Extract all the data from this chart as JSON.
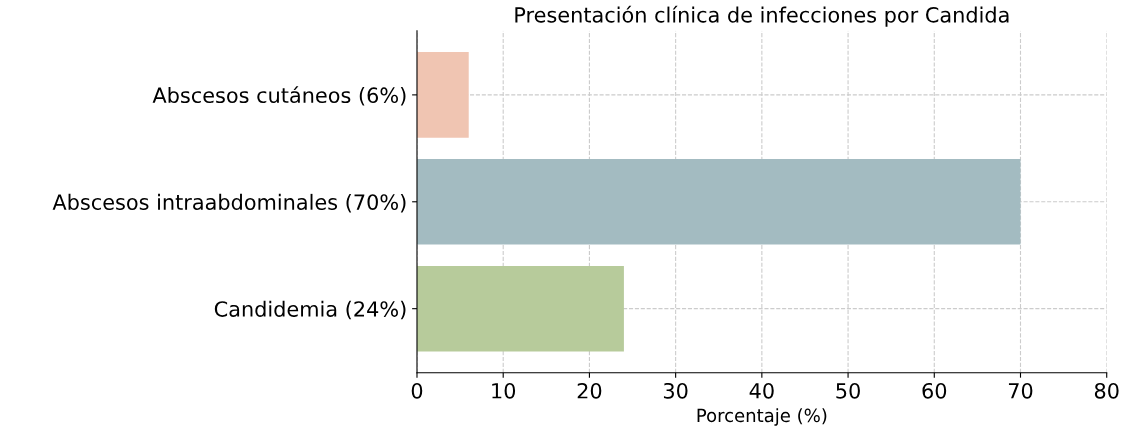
{
  "chart_data": {
    "type": "bar",
    "orientation": "horizontal",
    "title": "Presentación clínica de infecciones por Candida",
    "xlabel": "Porcentaje (%)",
    "categories": [
      "Abscesos cutáneos (6%)",
      "Abscesos intraabdominales (70%)",
      "Candidemia (24%)"
    ],
    "values": [
      6,
      70,
      24
    ],
    "colors": [
      "#f0c5b2",
      "#a3bbc1",
      "#b7cb9b"
    ],
    "xlim": [
      0,
      80
    ],
    "xticks": [
      0,
      10,
      20,
      30,
      40,
      50,
      60,
      70,
      80
    ],
    "grid": true
  }
}
